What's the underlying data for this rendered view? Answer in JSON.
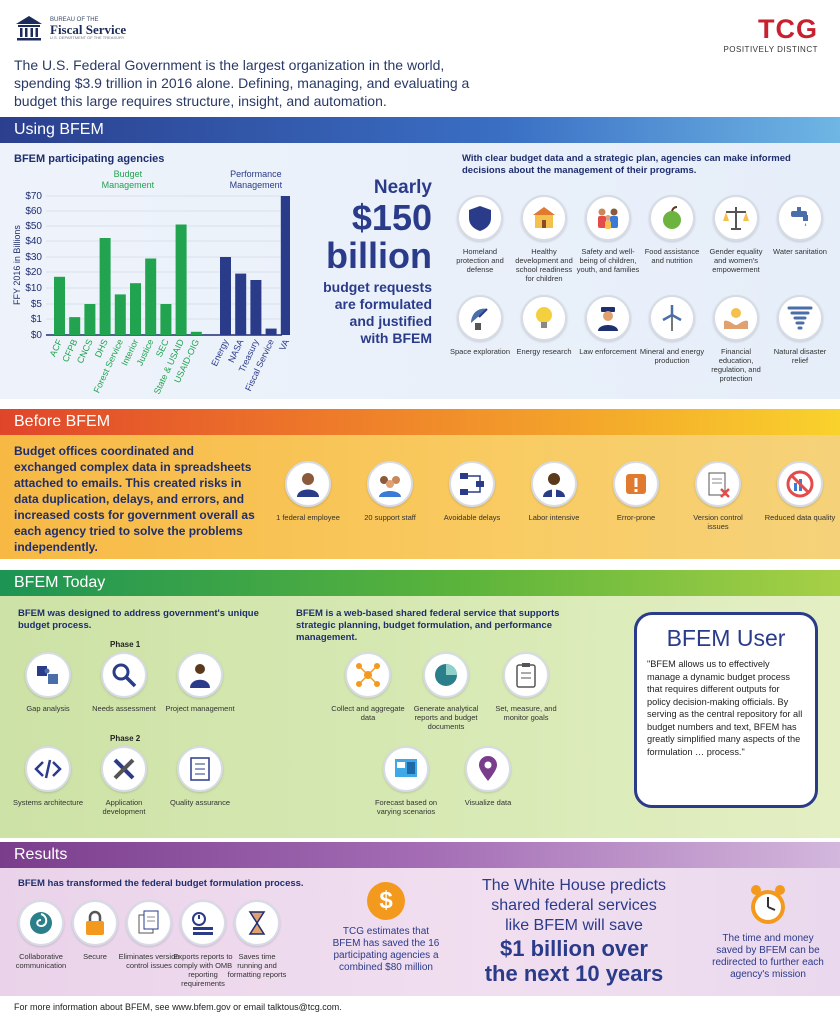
{
  "header": {
    "fiscal_small_top": "BUREAU OF THE",
    "fiscal_name": "Fiscal Service",
    "fiscal_small_bottom": "U.S. DEPARTMENT OF THE TREASURY",
    "tcg_name": "TCG",
    "tcg_tagline": "POSITIVELY DISTINCT",
    "intro_text": "The U.S. Federal Government is the largest organization in the world, spending $3.9 trillion in 2016 alone. Defining, managing, and evaluating a budget this large requires structure, insight, and automation."
  },
  "using": {
    "title": "Using BFEM",
    "agencies_heading": "BFEM participating agencies",
    "decisions_heading": "With clear budget data and a strategic plan, agencies can make informed decisions about the management of their programs.",
    "stat_line1": "Nearly",
    "stat_line2": "$150",
    "stat_line3": "billion",
    "stat_line4": "budget requests",
    "stat_line5": "are formulated",
    "stat_line6": "and justified",
    "stat_line7": "with BFEM",
    "programs": [
      {
        "label": "Homeland protection and defense",
        "icon": "shield-icon"
      },
      {
        "label": "Healthy development and school readiness for children",
        "icon": "school-icon"
      },
      {
        "label": "Safety and well-being of children, youth, and families",
        "icon": "family-icon"
      },
      {
        "label": "Food assistance and nutrition",
        "icon": "apple-icon"
      },
      {
        "label": "Gender equality and women's empowerment",
        "icon": "scales-icon"
      },
      {
        "label": "Water sanitation",
        "icon": "faucet-icon"
      },
      {
        "label": "Space exploration",
        "icon": "satellite-dish-icon"
      },
      {
        "label": "Energy research",
        "icon": "lightbulb-icon"
      },
      {
        "label": "Law enforcement",
        "icon": "police-officer-icon"
      },
      {
        "label": "Mineral and energy production",
        "icon": "wind-turbine-icon"
      },
      {
        "label": "Financial education, regulation, and protection",
        "icon": "hands-coin-icon"
      },
      {
        "label": "Natural disaster relief",
        "icon": "tornado-icon"
      }
    ]
  },
  "chart_data": {
    "type": "bar",
    "ylabel": "FFY 2016 in Billions",
    "yticks": [
      "$0",
      "$1",
      "$5",
      "$10",
      "$20",
      "$30",
      "$40",
      "$50",
      "$60",
      "$70"
    ],
    "group_labels": [
      "Budget Management",
      "Performance Management"
    ],
    "categories": [
      "ACF",
      "CFPB",
      "CNCS",
      "DHS",
      "Forest Service",
      "Interior",
      "Justice",
      "SEC",
      "State & USAID",
      "USAID-OIG",
      "Energy",
      "NASA",
      "Treasury",
      "Fiscal Service",
      "VA"
    ],
    "values": [
      17,
      1.5,
      5,
      42,
      8,
      13,
      29,
      5,
      51,
      0.2,
      30,
      19,
      15,
      0.4,
      72
    ],
    "groups": [
      "Budget Management",
      "Budget Management",
      "Budget Management",
      "Budget Management",
      "Budget Management",
      "Budget Management",
      "Budget Management",
      "Budget Management",
      "Budget Management",
      "Budget Management",
      "Performance Management",
      "Performance Management",
      "Performance Management",
      "Performance Management",
      "Performance Management"
    ],
    "colors": {
      "Budget Management": "#22a34f",
      "Performance Management": "#2a3b8a"
    }
  },
  "before": {
    "title": "Before BFEM",
    "text": "Budget offices coordinated and exchanged complex data in spreadsheets attached to emails. This created risks in data duplication, delays, and errors, and increased costs for government overall as each agency tried to solve the problems independently.",
    "items": [
      {
        "label": "1 federal employee",
        "icon": "person-icon"
      },
      {
        "label": "20 support staff",
        "icon": "group-icon"
      },
      {
        "label": "Avoidable delays",
        "icon": "flowchart-icon"
      },
      {
        "label": "Labor intensive",
        "icon": "worker-icon"
      },
      {
        "label": "Error-prone",
        "icon": "warning-icon"
      },
      {
        "label": "Version control issues",
        "icon": "document-error-icon"
      },
      {
        "label": "Reduced data quality",
        "icon": "no-chart-icon"
      }
    ]
  },
  "today": {
    "title": "BFEM Today",
    "left_heading": "BFEM was designed to address government's unique budget process.",
    "mid_heading": "BFEM is a web-based shared federal service that supports strategic planning, budget formulation, and performance management.",
    "phase1": "Phase 1",
    "phase2": "Phase 2",
    "phase1_items": [
      {
        "label": "Gap analysis",
        "icon": "puzzle-icon"
      },
      {
        "label": "Needs assessment",
        "icon": "magnifier-icon"
      },
      {
        "label": "Project management",
        "icon": "manager-icon"
      }
    ],
    "phase2_items": [
      {
        "label": "Systems architecture",
        "icon": "code-icon"
      },
      {
        "label": "Application development",
        "icon": "tools-icon"
      },
      {
        "label": "Quality assurance",
        "icon": "checklist-icon"
      }
    ],
    "service_items": [
      {
        "label": "Collect and aggregate data",
        "icon": "network-icon"
      },
      {
        "label": "Generate analytical reports and budget documents",
        "icon": "pie-chart-icon"
      },
      {
        "label": "Set, measure, and monitor goals",
        "icon": "clipboard-icon"
      },
      {
        "label": "Forecast based on varying scenarios",
        "icon": "dashboard-icon"
      },
      {
        "label": "Visualize data",
        "icon": "map-pin-icon"
      }
    ],
    "user_title": "BFEM User",
    "user_quote": "\"BFEM allows us to effectively manage a dynamic budget process that requires different outputs for policy decision-making officials. By serving as the central repository for all budget numbers and text, BFEM has greatly simplified many aspects of the formulation … process.\""
  },
  "results": {
    "title": "Results",
    "heading": "BFEM has transformed the federal budget formulation process.",
    "items": [
      {
        "label": "Collaborative communication",
        "icon": "swirl-icon"
      },
      {
        "label": "Secure",
        "icon": "padlock-icon"
      },
      {
        "label": "Eliminates version control issues",
        "icon": "documents-icon"
      },
      {
        "label": "Exports reports to comply with OMB reporting requirements",
        "icon": "report-icon"
      },
      {
        "label": "Saves time running and formatting reports",
        "icon": "hourglass-icon"
      }
    ],
    "savings_text": "TCG estimates that BFEM has saved the 16 participating agencies a combined $80 million",
    "wh_line1": "The White House predicts",
    "wh_line2": "shared federal services",
    "wh_line3": "like BFEM will save",
    "wh_line4": "$1 billion over",
    "wh_line5": "the next 10 years",
    "redirect_text": "The time and money saved by BFEM can be redirected to further each agency's mission"
  },
  "footer": {
    "text": "For more information about BFEM, see www.bfem.gov or email talktous@tcg.com."
  }
}
